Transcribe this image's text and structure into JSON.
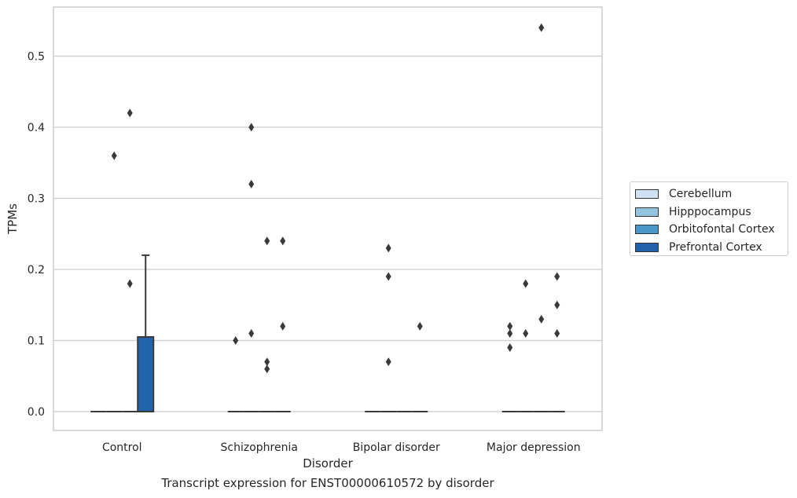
{
  "chart_data": {
    "type": "box",
    "categories": [
      "Control",
      "Schizophrenia",
      "Bipolar disorder",
      "Major depression"
    ],
    "xlabel": "Disorder",
    "ylabel": "TPMs",
    "caption": "Transcript expression for ENST00000610572 by disorder",
    "ylim": [
      -0.027,
      0.57
    ],
    "yticks": [
      "0.0",
      "0.1",
      "0.2",
      "0.3",
      "0.4",
      "0.5"
    ],
    "ytick_values": [
      0.0,
      0.1,
      0.2,
      0.3,
      0.4,
      0.5
    ],
    "grid": "horizontal",
    "legend_position": "outside-right",
    "series": [
      {
        "name": "Cerebellum",
        "color": "#cfe1f2"
      },
      {
        "name": "Hipppocampus",
        "color": "#93c4de"
      },
      {
        "name": "Orbitofontal Cortex",
        "color": "#4a98c9"
      },
      {
        "name": "Prefrontal Cortex",
        "color": "#2164ab"
      }
    ],
    "boxes": [
      {
        "category": "Control",
        "series": "Cerebellum",
        "q1": 0,
        "median": 0,
        "q3": 0,
        "whisker_low": 0,
        "whisker_high": 0,
        "outliers": []
      },
      {
        "category": "Control",
        "series": "Hipppocampus",
        "q1": 0,
        "median": 0,
        "q3": 0,
        "whisker_low": 0,
        "whisker_high": 0,
        "outliers": [
          0.36
        ]
      },
      {
        "category": "Control",
        "series": "Orbitofontal Cortex",
        "q1": 0,
        "median": 0,
        "q3": 0,
        "whisker_low": 0,
        "whisker_high": 0,
        "outliers": [
          0.42,
          0.18
        ]
      },
      {
        "category": "Control",
        "series": "Prefrontal Cortex",
        "q1": 0,
        "median": 0,
        "q3": 0.105,
        "whisker_low": 0,
        "whisker_high": 0.22,
        "outliers": []
      },
      {
        "category": "Schizophrenia",
        "series": "Cerebellum",
        "q1": 0,
        "median": 0,
        "q3": 0,
        "whisker_low": 0,
        "whisker_high": 0,
        "outliers": [
          0.1
        ]
      },
      {
        "category": "Schizophrenia",
        "series": "Hipppocampus",
        "q1": 0,
        "median": 0,
        "q3": 0,
        "whisker_low": 0,
        "whisker_high": 0,
        "outliers": [
          0.4,
          0.32,
          0.11
        ]
      },
      {
        "category": "Schizophrenia",
        "series": "Orbitofontal Cortex",
        "q1": 0,
        "median": 0,
        "q3": 0,
        "whisker_low": 0,
        "whisker_high": 0,
        "outliers": [
          0.24,
          0.07,
          0.06
        ]
      },
      {
        "category": "Schizophrenia",
        "series": "Prefrontal Cortex",
        "q1": 0,
        "median": 0,
        "q3": 0,
        "whisker_low": 0,
        "whisker_high": 0,
        "outliers": [
          0.24,
          0.12
        ]
      },
      {
        "category": "Bipolar disorder",
        "series": "Cerebellum",
        "q1": 0,
        "median": 0,
        "q3": 0,
        "whisker_low": 0,
        "whisker_high": 0,
        "outliers": []
      },
      {
        "category": "Bipolar disorder",
        "series": "Hipppocampus",
        "q1": 0,
        "median": 0,
        "q3": 0,
        "whisker_low": 0,
        "whisker_high": 0,
        "outliers": [
          0.23,
          0.19,
          0.07
        ]
      },
      {
        "category": "Bipolar disorder",
        "series": "Orbitofontal Cortex",
        "q1": 0,
        "median": 0,
        "q3": 0,
        "whisker_low": 0,
        "whisker_high": 0,
        "outliers": []
      },
      {
        "category": "Bipolar disorder",
        "series": "Prefrontal Cortex",
        "q1": 0,
        "median": 0,
        "q3": 0,
        "whisker_low": 0,
        "whisker_high": 0,
        "outliers": [
          0.12
        ]
      },
      {
        "category": "Major depression",
        "series": "Cerebellum",
        "q1": 0,
        "median": 0,
        "q3": 0,
        "whisker_low": 0,
        "whisker_high": 0,
        "outliers": [
          0.12,
          0.11,
          0.09
        ]
      },
      {
        "category": "Major depression",
        "series": "Hipppocampus",
        "q1": 0,
        "median": 0,
        "q3": 0,
        "whisker_low": 0,
        "whisker_high": 0,
        "outliers": [
          0.18,
          0.11
        ]
      },
      {
        "category": "Major depression",
        "series": "Orbitofontal Cortex",
        "q1": 0,
        "median": 0,
        "q3": 0,
        "whisker_low": 0,
        "whisker_high": 0,
        "outliers": [
          0.54,
          0.13
        ]
      },
      {
        "category": "Major depression",
        "series": "Prefrontal Cortex",
        "q1": 0,
        "median": 0,
        "q3": 0,
        "whisker_low": 0,
        "whisker_high": 0,
        "outliers": [
          0.19,
          0.15,
          0.11
        ]
      }
    ]
  }
}
